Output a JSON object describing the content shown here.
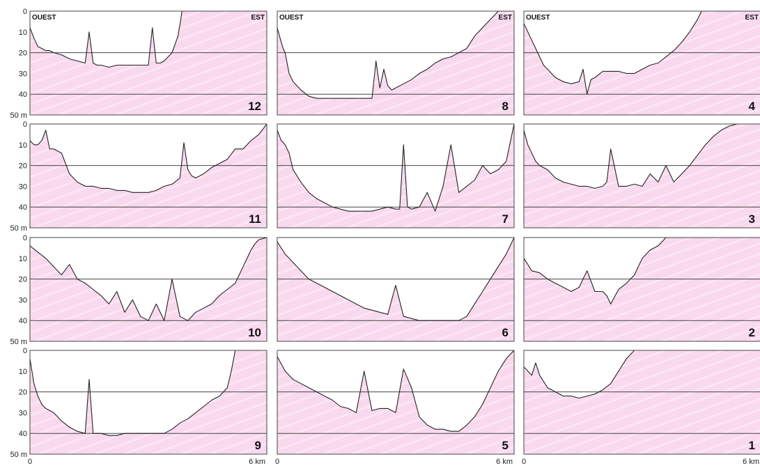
{
  "chart_data": {
    "type": "area",
    "x_range_km": [
      0,
      6
    ],
    "y_range_m": [
      0,
      50
    ],
    "y_axis_inverted": true,
    "y_ticks": [
      "0",
      "10",
      "20",
      "30",
      "40",
      "50 m"
    ],
    "x_tick_labels": [
      "0",
      "6 km"
    ],
    "reference_depths": [
      20,
      40
    ],
    "corner_labels": {
      "west": "OUEST",
      "east": "EST"
    },
    "colors": {
      "fill": "#f8d6ec",
      "line": "#222222",
      "frame": "#444444"
    },
    "panels": [
      {
        "label": "12",
        "x": [
          0,
          0.1,
          0.2,
          0.3,
          0.4,
          0.5,
          0.6,
          0.8,
          1.0,
          1.2,
          1.4,
          1.5,
          1.6,
          1.7,
          1.8,
          2.0,
          2.2,
          2.4,
          2.6,
          2.8,
          3.0,
          3.1,
          3.2,
          3.3,
          3.4,
          3.6,
          3.75,
          3.82,
          3.85
        ],
        "y": [
          8,
          13,
          17,
          18,
          19,
          19,
          20,
          21,
          23,
          24,
          25,
          10,
          25,
          26,
          26,
          27,
          26,
          26,
          26,
          26,
          26,
          8,
          25,
          25,
          24,
          20,
          12,
          4,
          0
        ]
      },
      {
        "label": "8",
        "x": [
          0,
          0.1,
          0.15,
          0.2,
          0.3,
          0.4,
          0.6,
          0.8,
          1.0,
          1.2,
          1.4,
          1.6,
          1.8,
          2.0,
          2.2,
          2.4,
          2.5,
          2.6,
          2.7,
          2.8,
          2.9,
          3.0,
          3.2,
          3.4,
          3.6,
          3.8,
          4.0,
          4.2,
          4.4,
          4.6,
          4.8,
          5.0,
          5.2,
          5.4,
          5.5,
          5.6
        ],
        "y": [
          8,
          15,
          18,
          20,
          30,
          34,
          38,
          41,
          42,
          42,
          42,
          42,
          42,
          42,
          42,
          42,
          24,
          37,
          28,
          36,
          38,
          37,
          35,
          33,
          30,
          28,
          25,
          23,
          22,
          20,
          18,
          12,
          8,
          4,
          2,
          0
        ]
      },
      {
        "label": "4",
        "x": [
          0,
          0.1,
          0.2,
          0.3,
          0.4,
          0.5,
          0.6,
          0.8,
          1.0,
          1.2,
          1.4,
          1.5,
          1.6,
          1.7,
          1.8,
          2.0,
          2.2,
          2.4,
          2.6,
          2.8,
          3.0,
          3.2,
          3.4,
          3.6,
          3.8,
          4.0,
          4.2,
          4.4,
          4.5
        ],
        "y": [
          6,
          10,
          14,
          18,
          22,
          26,
          28,
          32,
          34,
          35,
          34,
          28,
          40,
          33,
          32,
          29,
          29,
          29,
          30,
          30,
          28,
          26,
          25,
          22,
          19,
          15,
          10,
          4,
          0
        ]
      },
      {
        "label": "11",
        "x": [
          0,
          0.1,
          0.2,
          0.3,
          0.4,
          0.5,
          0.6,
          0.8,
          1.0,
          1.2,
          1.4,
          1.6,
          1.8,
          2.0,
          2.2,
          2.4,
          2.6,
          2.8,
          3.0,
          3.2,
          3.4,
          3.6,
          3.8,
          3.9,
          4.0,
          4.1,
          4.2,
          4.4,
          4.6,
          4.8,
          5.0,
          5.2,
          5.4,
          5.6,
          5.8,
          6.0
        ],
        "y": [
          8,
          10,
          10,
          8,
          3,
          12,
          12,
          14,
          24,
          28,
          30,
          30,
          31,
          31,
          32,
          32,
          33,
          33,
          33,
          32,
          30,
          29,
          26,
          9,
          22,
          25,
          26,
          24,
          21,
          19,
          17,
          12,
          12,
          8,
          5,
          0
        ]
      },
      {
        "label": "7",
        "x": [
          0,
          0.1,
          0.2,
          0.3,
          0.4,
          0.6,
          0.8,
          1.0,
          1.2,
          1.4,
          1.6,
          1.8,
          2.0,
          2.2,
          2.4,
          2.6,
          2.8,
          3.0,
          3.1,
          3.2,
          3.3,
          3.4,
          3.6,
          3.8,
          4.0,
          4.2,
          4.4,
          4.6,
          4.8,
          5.0,
          5.2,
          5.4,
          5.6,
          5.8,
          6.0
        ],
        "y": [
          3,
          8,
          10,
          14,
          22,
          28,
          33,
          36,
          38,
          40,
          41,
          42,
          42,
          42,
          42,
          41,
          40,
          41,
          41,
          10,
          40,
          41,
          40,
          33,
          42,
          30,
          10,
          33,
          30,
          27,
          20,
          24,
          22,
          18,
          0
        ]
      },
      {
        "label": "3",
        "x": [
          0,
          0.1,
          0.2,
          0.3,
          0.4,
          0.6,
          0.8,
          1.0,
          1.2,
          1.4,
          1.6,
          1.8,
          2.0,
          2.1,
          2.2,
          2.4,
          2.6,
          2.8,
          3.0,
          3.2,
          3.4,
          3.6,
          3.8,
          4.0,
          4.2,
          4.4,
          4.6,
          4.8,
          5.0,
          5.2,
          5.4,
          5.6,
          5.8,
          6.0
        ],
        "y": [
          3,
          10,
          14,
          18,
          20,
          22,
          26,
          28,
          29,
          30,
          30,
          31,
          30,
          28,
          12,
          30,
          30,
          29,
          30,
          24,
          28,
          20,
          28,
          24,
          20,
          15,
          10,
          6,
          3,
          1,
          0,
          0,
          0,
          0
        ]
      },
      {
        "label": "10",
        "x": [
          0,
          0.2,
          0.4,
          0.6,
          0.8,
          1.0,
          1.2,
          1.4,
          1.6,
          1.8,
          2.0,
          2.2,
          2.4,
          2.6,
          2.8,
          3.0,
          3.2,
          3.4,
          3.6,
          3.8,
          4.0,
          4.2,
          4.4,
          4.6,
          4.8,
          5.0,
          5.2,
          5.4,
          5.5,
          5.6,
          5.7,
          5.8,
          6.0
        ],
        "y": [
          4,
          7,
          10,
          14,
          18,
          13,
          20,
          22,
          25,
          28,
          32,
          26,
          36,
          30,
          38,
          40,
          32,
          40,
          20,
          38,
          40,
          36,
          34,
          32,
          28,
          25,
          22,
          14,
          10,
          6,
          3,
          1,
          0
        ]
      },
      {
        "label": "6",
        "x": [
          0,
          0.2,
          0.4,
          0.6,
          0.8,
          1.0,
          1.2,
          1.4,
          1.6,
          1.8,
          2.0,
          2.2,
          2.4,
          2.6,
          2.8,
          3.0,
          3.2,
          3.4,
          3.6,
          3.8,
          4.0,
          4.2,
          4.4,
          4.6,
          4.8,
          5.0,
          5.2,
          5.4,
          5.6,
          5.8,
          6.0
        ],
        "y": [
          2,
          8,
          12,
          16,
          20,
          22,
          24,
          26,
          28,
          30,
          32,
          34,
          35,
          36,
          37,
          23,
          38,
          39,
          40,
          40,
          40,
          40,
          40,
          40,
          38,
          32,
          26,
          20,
          14,
          8,
          0
        ]
      },
      {
        "label": "2",
        "x": [
          0,
          0.1,
          0.2,
          0.4,
          0.6,
          0.8,
          1.0,
          1.2,
          1.4,
          1.6,
          1.8,
          2.0,
          2.1,
          2.2,
          2.4,
          2.6,
          2.8,
          3.0,
          3.2,
          3.4,
          3.6,
          3.8,
          4.0,
          4.2,
          4.4,
          4.6,
          4.8,
          5.0,
          5.2,
          5.4,
          5.6,
          5.8,
          6.0
        ],
        "y": [
          10,
          13,
          16,
          17,
          20,
          22,
          24,
          26,
          24,
          16,
          26,
          26,
          28,
          32,
          25,
          22,
          18,
          10,
          6,
          4,
          0,
          0,
          0,
          0,
          0,
          0,
          0,
          0,
          0,
          0,
          0,
          0,
          0
        ]
      },
      {
        "label": "9",
        "x": [
          0,
          0.1,
          0.2,
          0.3,
          0.4,
          0.6,
          0.8,
          1.0,
          1.2,
          1.4,
          1.5,
          1.6,
          1.8,
          2.0,
          2.2,
          2.4,
          2.6,
          2.8,
          3.0,
          3.2,
          3.4,
          3.6,
          3.8,
          4.0,
          4.2,
          4.4,
          4.6,
          4.8,
          5.0,
          5.1,
          5.2
        ],
        "y": [
          4,
          16,
          22,
          26,
          28,
          30,
          34,
          37,
          39,
          40,
          14,
          40,
          40,
          41,
          41,
          40,
          40,
          40,
          40,
          40,
          40,
          38,
          35,
          33,
          30,
          27,
          24,
          22,
          18,
          10,
          0
        ]
      },
      {
        "label": "5",
        "x": [
          0,
          0.2,
          0.4,
          0.6,
          0.8,
          1.0,
          1.2,
          1.4,
          1.6,
          1.8,
          2.0,
          2.2,
          2.4,
          2.6,
          2.8,
          3.0,
          3.2,
          3.4,
          3.6,
          3.8,
          4.0,
          4.2,
          4.4,
          4.6,
          4.8,
          5.0,
          5.2,
          5.4,
          5.6,
          5.8,
          6.0
        ],
        "y": [
          3,
          10,
          14,
          16,
          18,
          20,
          22,
          24,
          27,
          28,
          30,
          10,
          29,
          28,
          28,
          30,
          9,
          18,
          32,
          36,
          38,
          38,
          39,
          39,
          36,
          32,
          26,
          18,
          10,
          4,
          0
        ]
      },
      {
        "label": "1",
        "x": [
          0,
          0.1,
          0.2,
          0.3,
          0.4,
          0.6,
          0.8,
          1.0,
          1.2,
          1.4,
          1.6,
          1.8,
          2.0,
          2.2,
          2.4,
          2.6,
          2.8,
          3.0,
          3.2,
          3.4,
          3.6,
          3.8,
          4.0,
          4.2,
          4.4,
          4.6,
          4.8,
          5.0,
          5.2,
          5.4,
          5.6,
          5.8,
          6.0
        ],
        "y": [
          8,
          10,
          12,
          6,
          12,
          18,
          20,
          22,
          22,
          23,
          22,
          21,
          19,
          16,
          10,
          4,
          0,
          0,
          0,
          0,
          0,
          0,
          0,
          0,
          0,
          0,
          0,
          0,
          0,
          0,
          0,
          0,
          0
        ]
      }
    ]
  }
}
